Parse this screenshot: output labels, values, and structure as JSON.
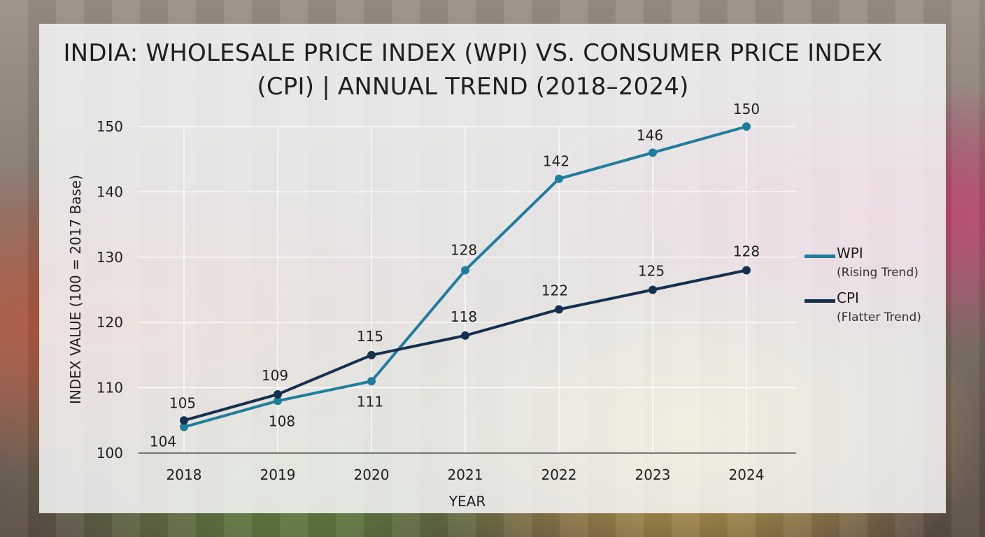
{
  "chart_data": {
    "type": "line",
    "title": "INDIA: WHOLESALE PRICE INDEX (WPI) VS. CONSUMER PRICE INDEX (CPI) | ANNUAL TREND (2018–2024)",
    "xlabel": "YEAR",
    "ylabel": "INDEX VALUE (100 = 2017 Base)",
    "x": [
      "2018",
      "2019",
      "2020",
      "2021",
      "2022",
      "2023",
      "2024"
    ],
    "ylim": [
      100,
      150
    ],
    "yticks": [
      100,
      110,
      120,
      130,
      140,
      150
    ],
    "grid": true,
    "legend_position": "right",
    "series": [
      {
        "name": "WPI",
        "note": "(Rising Trend)",
        "color": "#1f7d9e",
        "values": [
          104,
          108,
          111,
          128,
          142,
          146,
          150
        ]
      },
      {
        "name": "CPI",
        "note": "(Flatter Trend)",
        "color": "#15304f",
        "values": [
          105,
          109,
          115,
          118,
          122,
          125,
          128
        ]
      }
    ]
  }
}
